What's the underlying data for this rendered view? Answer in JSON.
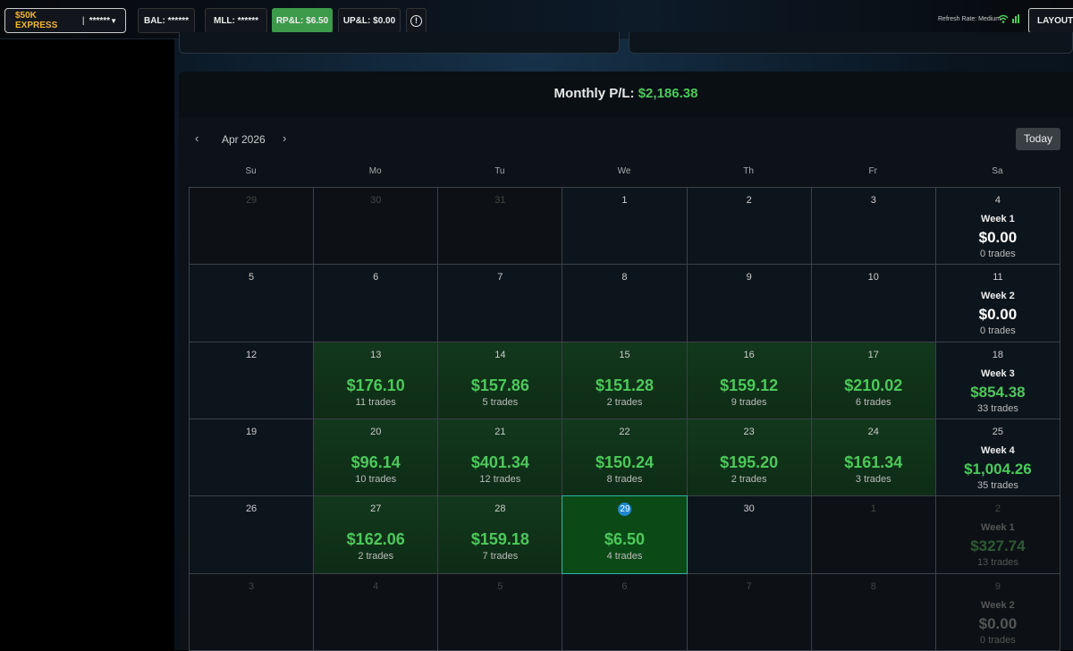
{
  "toolbar": {
    "account": "$50K EXPRESS",
    "account_mask": "******",
    "bal": "BAL: ******",
    "mll": "MLL: ******",
    "rpl": "RP&L: $6.50",
    "upl": "UP&L: $0.00",
    "refresh": "Refresh Rate: Medium",
    "layout": "LAYOUT"
  },
  "calendar": {
    "monthly_label": "Monthly P/L:",
    "monthly_value": "$2,186.38",
    "month": "Apr 2026",
    "today": "Today",
    "weekdays": [
      "Su",
      "Mo",
      "Tu",
      "We",
      "Th",
      "Fr",
      "Sa"
    ],
    "weeks": [
      {
        "days": [
          {
            "day": "29"
          },
          {
            "day": "30"
          },
          {
            "day": "31"
          },
          {
            "day": "1"
          },
          {
            "day": "2"
          },
          {
            "day": "3"
          },
          {
            "day": "4"
          }
        ],
        "week": {
          "label": "Week 1",
          "pnl": "$0.00",
          "trades": "0 trades"
        }
      },
      {
        "days": [
          {
            "day": "5"
          },
          {
            "day": "6"
          },
          {
            "day": "7"
          },
          {
            "day": "8"
          },
          {
            "day": "9"
          },
          {
            "day": "10"
          },
          {
            "day": "11"
          }
        ],
        "week": {
          "label": "Week 2",
          "pnl": "$0.00",
          "trades": "0 trades"
        }
      },
      {
        "days": [
          {
            "day": "12"
          },
          {
            "day": "13",
            "pnl": "$176.10",
            "trades": "11 trades"
          },
          {
            "day": "14",
            "pnl": "$157.86",
            "trades": "5 trades"
          },
          {
            "day": "15",
            "pnl": "$151.28",
            "trades": "2 trades"
          },
          {
            "day": "16",
            "pnl": "$159.12",
            "trades": "9 trades"
          },
          {
            "day": "17",
            "pnl": "$210.02",
            "trades": "6 trades"
          },
          {
            "day": "18"
          }
        ],
        "week": {
          "label": "Week 3",
          "pnl": "$854.38",
          "trades": "33 trades"
        }
      },
      {
        "days": [
          {
            "day": "19"
          },
          {
            "day": "20",
            "pnl": "$96.14",
            "trades": "10 trades"
          },
          {
            "day": "21",
            "pnl": "$401.34",
            "trades": "12 trades"
          },
          {
            "day": "22",
            "pnl": "$150.24",
            "trades": "8 trades"
          },
          {
            "day": "23",
            "pnl": "$195.20",
            "trades": "2 trades"
          },
          {
            "day": "24",
            "pnl": "$161.34",
            "trades": "3 trades"
          },
          {
            "day": "25"
          }
        ],
        "week": {
          "label": "Week 4",
          "pnl": "$1,004.26",
          "trades": "35 trades"
        }
      },
      {
        "days": [
          {
            "day": "26"
          },
          {
            "day": "27",
            "pnl": "$162.06",
            "trades": "2 trades"
          },
          {
            "day": "28",
            "pnl": "$159.18",
            "trades": "7 trades"
          },
          {
            "day": "29",
            "pnl": "$6.50",
            "trades": "4 trades"
          },
          {
            "day": "30"
          },
          {
            "day": "1"
          },
          {
            "day": "2"
          }
        ],
        "week": {
          "label": "Week 1",
          "pnl": "$327.74",
          "trades": "13 trades"
        }
      },
      {
        "days": [
          {
            "day": "3"
          },
          {
            "day": "4"
          },
          {
            "day": "5"
          },
          {
            "day": "6"
          },
          {
            "day": "7"
          },
          {
            "day": "8"
          },
          {
            "day": "9"
          }
        ],
        "week": {
          "label": "Week 2",
          "pnl": "$0.00",
          "trades": "0 trades"
        }
      }
    ]
  }
}
